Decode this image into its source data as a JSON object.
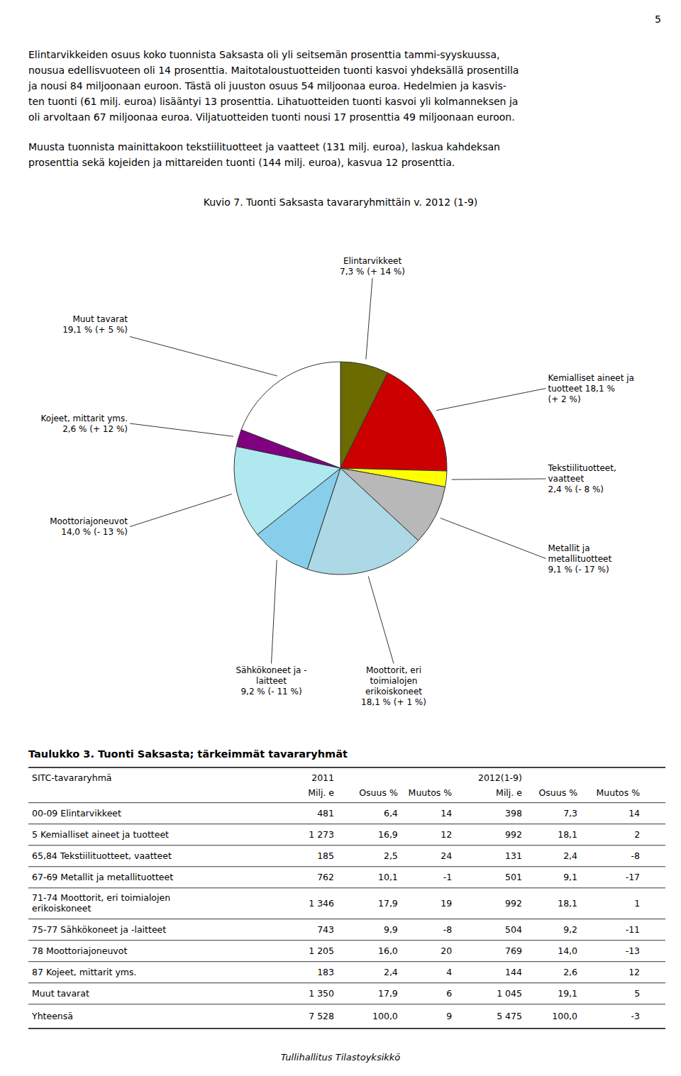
{
  "page_number": "5",
  "paragraphs": [
    [
      "Elintarvikkeiden osuus koko tuonnista Saksasta oli yli seitsemän prosenttia tammi-syyskuussa,",
      "nousua edellisvuoteen oli 14 prosenttia. Maitotaloustuotteiden tuonti kasvoi yhdeksällä prosentilla",
      "ja nousi 84 miljoonaan euroon. Tästä oli juuston osuus 54 miljoonaa euroa. Hedelmien ja kasvis-",
      "ten tuonti (61 milj. euroa) lisääntyi 13 prosenttia. Lihatuotteiden tuonti kasvoi yli kolmanneksen ja",
      "oli arvoltaan 67 miljoonaa euroa. Viljatuotteiden tuonti nousi 17 prosenttia 49 miljoonaan euroon."
    ],
    [
      "Muusta tuonnista mainittakoon tekstiilituotteet ja vaatteet (131 milj. euroa), laskua kahdeksan",
      "prosenttia sekä kojeiden ja mittareiden tuonti (144 milj. euroa), kasvua 12 prosenttia."
    ]
  ],
  "chart_data": {
    "type": "pie",
    "title": "Kuvio 7. Tuonti Saksasta tavararyhmittäin v. 2012 (1-9)",
    "categories": [
      "Elintarvikkeet\n7,3 % (+ 14 %)",
      "Kemialliset aineet ja\ntuotteet 18,1 %\n(+ 2 %)",
      "Tekstiilituotteet,\nvaatteet\n2,4 % (- 8 %)",
      "Metallit ja\nmetallituotteet\n9,1 % (- 17 %)",
      "Moottorit, eri\ntoimialojen\nerikoiskoneet\n18,1 % (+ 1 %)",
      "Sähkökoneet ja -\nlaitteet\n9,2 % (- 11 %)",
      "Moottoriajoneuvot\n14,0 % (- 13 %)",
      "Kojeet, mittarit yms.\n2,6 % (+ 12 %)",
      "Muut tavarat\n19,1 % (+ 5 %)"
    ],
    "values": [
      7.3,
      18.1,
      2.4,
      9.1,
      18.1,
      9.2,
      14.0,
      2.6,
      19.1
    ],
    "colors": [
      "#6b6b00",
      "#cc0000",
      "#ffff00",
      "#b8b8b8",
      "#add8e6",
      "#87ceeb",
      "#b0e8f0",
      "#800080",
      "#ffffff"
    ]
  },
  "table": {
    "title": "Taulukko 3. Tuonti Saksasta; tärkeimmät tavararyhmät",
    "first_column": "SITC-tavararyhmä",
    "groups": [
      {
        "name": "2011",
        "columns": [
          "Milj. e",
          "Osuus %",
          "Muutos %"
        ]
      },
      {
        "name": "2012(1-9)",
        "columns": [
          "Milj. e",
          "Osuus %",
          "Muutos %"
        ]
      }
    ],
    "rows": [
      [
        "00-09 Elintarvikkeet",
        "481",
        "6,4",
        "14",
        "398",
        "7,3",
        "14"
      ],
      [
        "5 Kemialliset aineet ja tuotteet",
        "1 273",
        "16,9",
        "12",
        "992",
        "18,1",
        "2"
      ],
      [
        "65,84 Tekstiilituotteet, vaatteet",
        "185",
        "2,5",
        "24",
        "131",
        "2,4",
        "-8"
      ],
      [
        "67-69 Metallit ja metallituotteet",
        "762",
        "10,1",
        "-1",
        "501",
        "9,1",
        "-17"
      ],
      [
        "71-74 Moottorit, eri toimialojen\nerikoiskoneet",
        "1 346",
        "17,9",
        "19",
        "992",
        "18,1",
        "1"
      ],
      [
        "75-77 Sähkökoneet ja -laitteet",
        "743",
        "9,9",
        "-8",
        "504",
        "9,2",
        "-11"
      ],
      [
        "78 Moottoriajoneuvot",
        "1 205",
        "16,0",
        "20",
        "769",
        "14,0",
        "-13"
      ],
      [
        "87 Kojeet, mittarit yms.",
        "183",
        "2,4",
        "4",
        "144",
        "2,6",
        "12"
      ],
      [
        "Muut tavarat",
        "1 350",
        "17,9",
        "6",
        "1 045",
        "19,1",
        "5"
      ],
      [
        "Yhteensä",
        "7 528",
        "100,0",
        "9",
        "5 475",
        "100,0",
        "-3"
      ]
    ]
  },
  "footer": "Tullihallitus Tilastoyksikkö"
}
